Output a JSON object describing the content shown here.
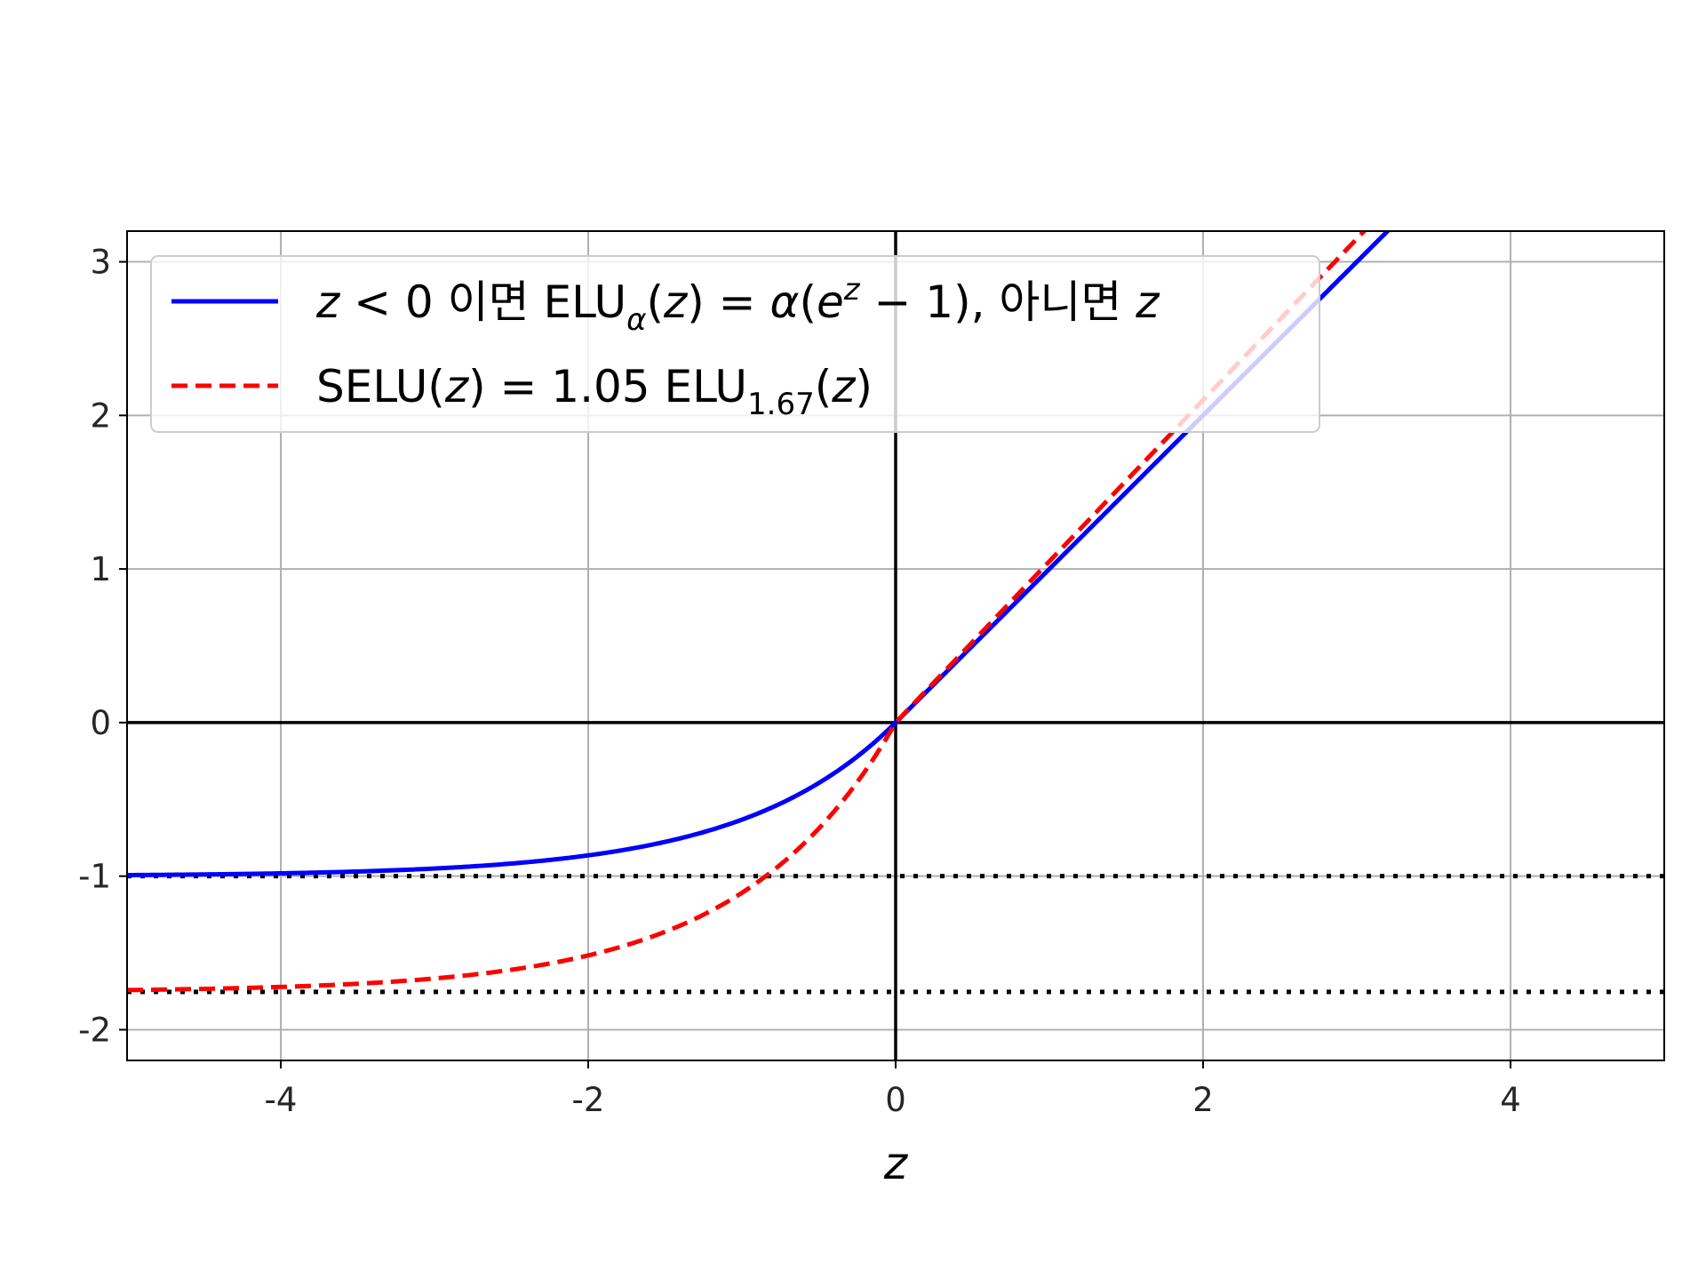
{
  "chart_data": {
    "type": "line",
    "xlabel": "z",
    "ylabel": "",
    "xlim": [
      -5,
      5
    ],
    "ylim": [
      -2.2,
      3.2
    ],
    "grid": true,
    "legend_position": "top-left",
    "x_ticks": [
      -4,
      -2,
      0,
      2,
      4
    ],
    "x_tick_labels": [
      "-4",
      "-2",
      "0",
      "2",
      "4"
    ],
    "y_ticks": [
      -2,
      -1,
      0,
      1,
      2,
      3
    ],
    "y_tick_labels": [
      "-2",
      "-1",
      "0",
      "1",
      "2",
      "3"
    ],
    "series": [
      {
        "name": "z < 0 이면 ELUα(z) = α(e^z − 1), 아니면 z",
        "color": "#0000ff",
        "style": "solid",
        "function": "elu",
        "alpha": 1.0,
        "scale": 1.0,
        "x": [
          -5,
          -4,
          -3,
          -2,
          -1.5,
          -1,
          -0.5,
          0,
          1,
          2,
          3,
          3.2
        ],
        "y": [
          -0.99,
          -0.98,
          -0.95,
          -0.86,
          -0.78,
          -0.63,
          -0.39,
          0,
          1,
          2,
          3,
          3.2
        ]
      },
      {
        "name": "SELU(z) = 1.05 ELU1.67(z)",
        "color": "#ff0000",
        "style": "dashed",
        "function": "elu",
        "alpha": 1.67,
        "scale": 1.05,
        "x": [
          -5,
          -4,
          -3,
          -2,
          -1.5,
          -1,
          -0.5,
          0,
          1,
          2,
          3,
          3.05
        ],
        "y": [
          -1.74,
          -1.72,
          -1.67,
          -1.52,
          -1.36,
          -1.11,
          -0.69,
          0,
          1.05,
          2.1,
          3.15,
          3.2
        ]
      }
    ],
    "reference_lines": [
      {
        "orientation": "horizontal",
        "y": 0,
        "style": "solid",
        "color": "#000000"
      },
      {
        "orientation": "vertical",
        "x": 0,
        "style": "solid",
        "color": "#000000"
      },
      {
        "orientation": "horizontal",
        "y": -1,
        "style": "dotted",
        "color": "#000000"
      },
      {
        "orientation": "horizontal",
        "y": -1.7535,
        "style": "dotted",
        "color": "#000000"
      }
    ],
    "legend": {
      "entries": [
        {
          "parts": [
            {
              "text": "z",
              "italic": true
            },
            {
              "text": " < 0 이면 ELU",
              "italic": false
            },
            {
              "text": "α",
              "italic": true,
              "sub": true
            },
            {
              "text": "(",
              "italic": false
            },
            {
              "text": "z",
              "italic": true
            },
            {
              "text": ") = ",
              "italic": false
            },
            {
              "text": "α",
              "italic": true
            },
            {
              "text": "(",
              "italic": false
            },
            {
              "text": "e",
              "italic": true
            },
            {
              "text": "z",
              "italic": true,
              "sup": true
            },
            {
              "text": " − 1), 아니면 ",
              "italic": false
            },
            {
              "text": "z",
              "italic": true
            }
          ]
        },
        {
          "parts": [
            {
              "text": "SELU(",
              "italic": false
            },
            {
              "text": "z",
              "italic": true
            },
            {
              "text": ") = 1.05 ELU",
              "italic": false
            },
            {
              "text": "1.67",
              "italic": false,
              "sub": true
            },
            {
              "text": "(",
              "italic": false
            },
            {
              "text": "z",
              "italic": true
            },
            {
              "text": ")",
              "italic": false
            }
          ]
        }
      ]
    }
  }
}
